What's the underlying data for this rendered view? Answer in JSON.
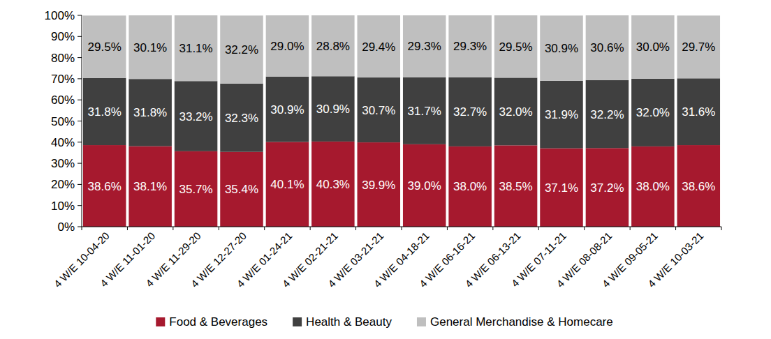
{
  "chart_data": {
    "type": "bar",
    "stacked": true,
    "data_labels": true,
    "legend": "bottom",
    "grid": false,
    "categories": [
      "4 W/E 10-04-20",
      "4 W/E 11-01-20",
      "4 W/E 11-29-20",
      "4 W/E 12-27-20",
      "4 W/E 01-24-21",
      "4 W/E 02-21-21",
      "4 W/E 03-21-21",
      "4 W/E 04-18-21",
      "4 W/E 06-16-21",
      "4 W/E 06-13-21",
      "4 W/E 07-11-21",
      "4 W/E 08-08-21",
      "4 W/E 09-05-21",
      "4 W/E 10-03-21"
    ],
    "ylim": [
      0,
      100
    ],
    "yticks": [
      {
        "value": 0,
        "label": "0%"
      },
      {
        "value": 10,
        "label": "10%"
      },
      {
        "value": 20,
        "label": "20%"
      },
      {
        "value": 30,
        "label": "30%"
      },
      {
        "value": 40,
        "label": "40%"
      },
      {
        "value": 50,
        "label": "50%"
      },
      {
        "value": 60,
        "label": "60%"
      },
      {
        "value": 70,
        "label": "70%"
      },
      {
        "value": 80,
        "label": "80%"
      },
      {
        "value": 90,
        "label": "90%"
      },
      {
        "value": 100,
        "label": "100%"
      }
    ],
    "series": [
      {
        "name": "Food & Beverages",
        "color": "#a6192e",
        "values": [
          38.6,
          38.1,
          35.7,
          35.4,
          40.1,
          40.3,
          39.9,
          39.0,
          38.0,
          38.5,
          37.1,
          37.2,
          38.0,
          38.6
        ],
        "value_labels": [
          "38.6%",
          "38.1%",
          "35.7%",
          "35.4%",
          "40.1%",
          "40.3%",
          "39.9%",
          "39.0%",
          "38.0%",
          "38.5%",
          "37.1%",
          "37.2%",
          "38.0%",
          "38.6%"
        ]
      },
      {
        "name": "Health & Beauty",
        "color": "#404040",
        "values": [
          31.8,
          31.8,
          33.2,
          32.3,
          30.9,
          30.9,
          30.7,
          31.7,
          32.7,
          32.0,
          31.9,
          32.2,
          32.0,
          31.6
        ],
        "value_labels": [
          "31.8%",
          "31.8%",
          "33.2%",
          "32.3%",
          "30.9%",
          "30.9%",
          "30.7%",
          "31.7%",
          "32.7%",
          "32.0%",
          "31.9%",
          "32.2%",
          "32.0%",
          "31.6%"
        ]
      },
      {
        "name": "General Merchandise & Homecare",
        "color": "#bfbfbf",
        "values": [
          29.5,
          30.1,
          31.1,
          32.2,
          29.0,
          28.8,
          29.4,
          29.3,
          29.3,
          29.5,
          30.9,
          30.6,
          30.0,
          29.7
        ],
        "value_labels": [
          "29.5%",
          "30.1%",
          "31.1%",
          "32.2%",
          "29.0%",
          "28.8%",
          "29.4%",
          "29.3%",
          "29.3%",
          "29.5%",
          "30.9%",
          "30.6%",
          "30.0%",
          "29.7%"
        ]
      }
    ]
  }
}
